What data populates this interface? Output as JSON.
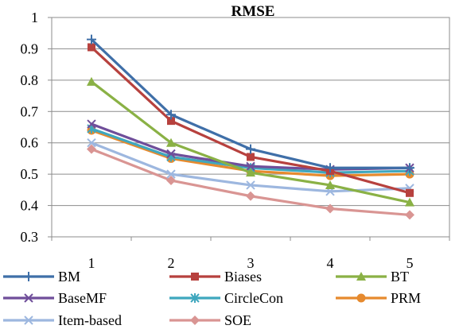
{
  "chart_data": {
    "type": "line",
    "title": "RMSE",
    "xlabel": "",
    "ylabel": "",
    "x": [
      1,
      2,
      3,
      4,
      5
    ],
    "ylim": [
      0.3,
      1
    ],
    "yticks": [
      "0.3",
      "0.4",
      "0.5",
      "0.6",
      "0.7",
      "0.8",
      "0.9",
      "1"
    ],
    "xticks": [
      "1",
      "2",
      "3",
      "4",
      "5"
    ],
    "grid": "horizontal",
    "legend_position": "bottom",
    "series": [
      {
        "name": "BM",
        "color": "#3F6FA8",
        "marker": "plus",
        "values": [
          0.93,
          0.69,
          0.58,
          0.52,
          0.52
        ]
      },
      {
        "name": "Biases",
        "color": "#B7413E",
        "marker": "square",
        "values": [
          0.905,
          0.67,
          0.555,
          0.51,
          0.44
        ]
      },
      {
        "name": "BT",
        "color": "#8AB145",
        "marker": "triangle",
        "values": [
          0.795,
          0.6,
          0.505,
          0.465,
          0.41
        ]
      },
      {
        "name": "BaseMF",
        "color": "#6F4E9A",
        "marker": "x",
        "values": [
          0.66,
          0.565,
          0.525,
          0.515,
          0.52
        ]
      },
      {
        "name": "CircleCon",
        "color": "#3FA7BE",
        "marker": "asterisk",
        "values": [
          0.645,
          0.555,
          0.52,
          0.505,
          0.51
        ]
      },
      {
        "name": "PRM",
        "color": "#E68A2E",
        "marker": "circle",
        "values": [
          0.64,
          0.55,
          0.51,
          0.495,
          0.5
        ]
      },
      {
        "name": "Item-based",
        "color": "#9DB7DF",
        "marker": "x",
        "values": [
          0.6,
          0.5,
          0.465,
          0.445,
          0.455
        ]
      },
      {
        "name": "SOE",
        "color": "#D99593",
        "marker": "diamond",
        "values": [
          0.58,
          0.48,
          0.43,
          0.39,
          0.37
        ]
      }
    ]
  }
}
